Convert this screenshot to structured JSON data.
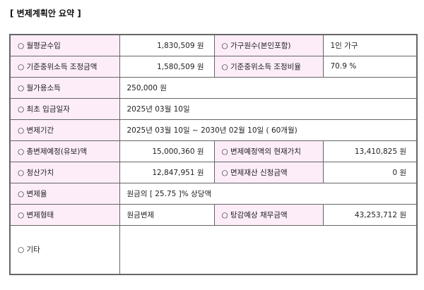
{
  "title": "[ 변제계획안 요약 ]",
  "bullet": "○",
  "rows": {
    "r1": {
      "l1": "월평균수입",
      "v1": "1,830,509 원",
      "l2": "가구원수(본인포함)",
      "v2": "1인 가구"
    },
    "r2": {
      "l1": "기준중위소득 조정금액",
      "v1": "1,580,509 원",
      "l2": "기준중위소득 조정비율",
      "v2": "70.9 %"
    },
    "r3": {
      "l1": "월가용소득",
      "v1": "250,000 원"
    },
    "r4": {
      "l1": "최초 입금일자",
      "v1": "2025년 03월 10일"
    },
    "r5": {
      "l1": "변제기간",
      "v1": "2025년 03월 10일 ~ 2030년 02월 10일 ( 60개월)"
    },
    "r6": {
      "l1": "총변제예정(유보)액",
      "v1": "15,000,360 원",
      "l2": "변제예정액의 현재가치",
      "v2": "13,410,825 원"
    },
    "r7": {
      "l1": "청산가치",
      "v1": "12,847,951 원",
      "l2": "면제재산 신청금액",
      "v2": "0 원"
    },
    "r8": {
      "l1": "변제율",
      "v1": "원금의 [ 25.75 ]% 상당액"
    },
    "r9": {
      "l1": "변제형태",
      "v1": "원금변제",
      "l2": "탕감예상 채무금액",
      "v2": "43,253,712 원"
    },
    "r10": {
      "l1": "기타",
      "v1": ""
    }
  },
  "colors": {
    "label_bg": "#fcedf9",
    "border": "#666666"
  }
}
